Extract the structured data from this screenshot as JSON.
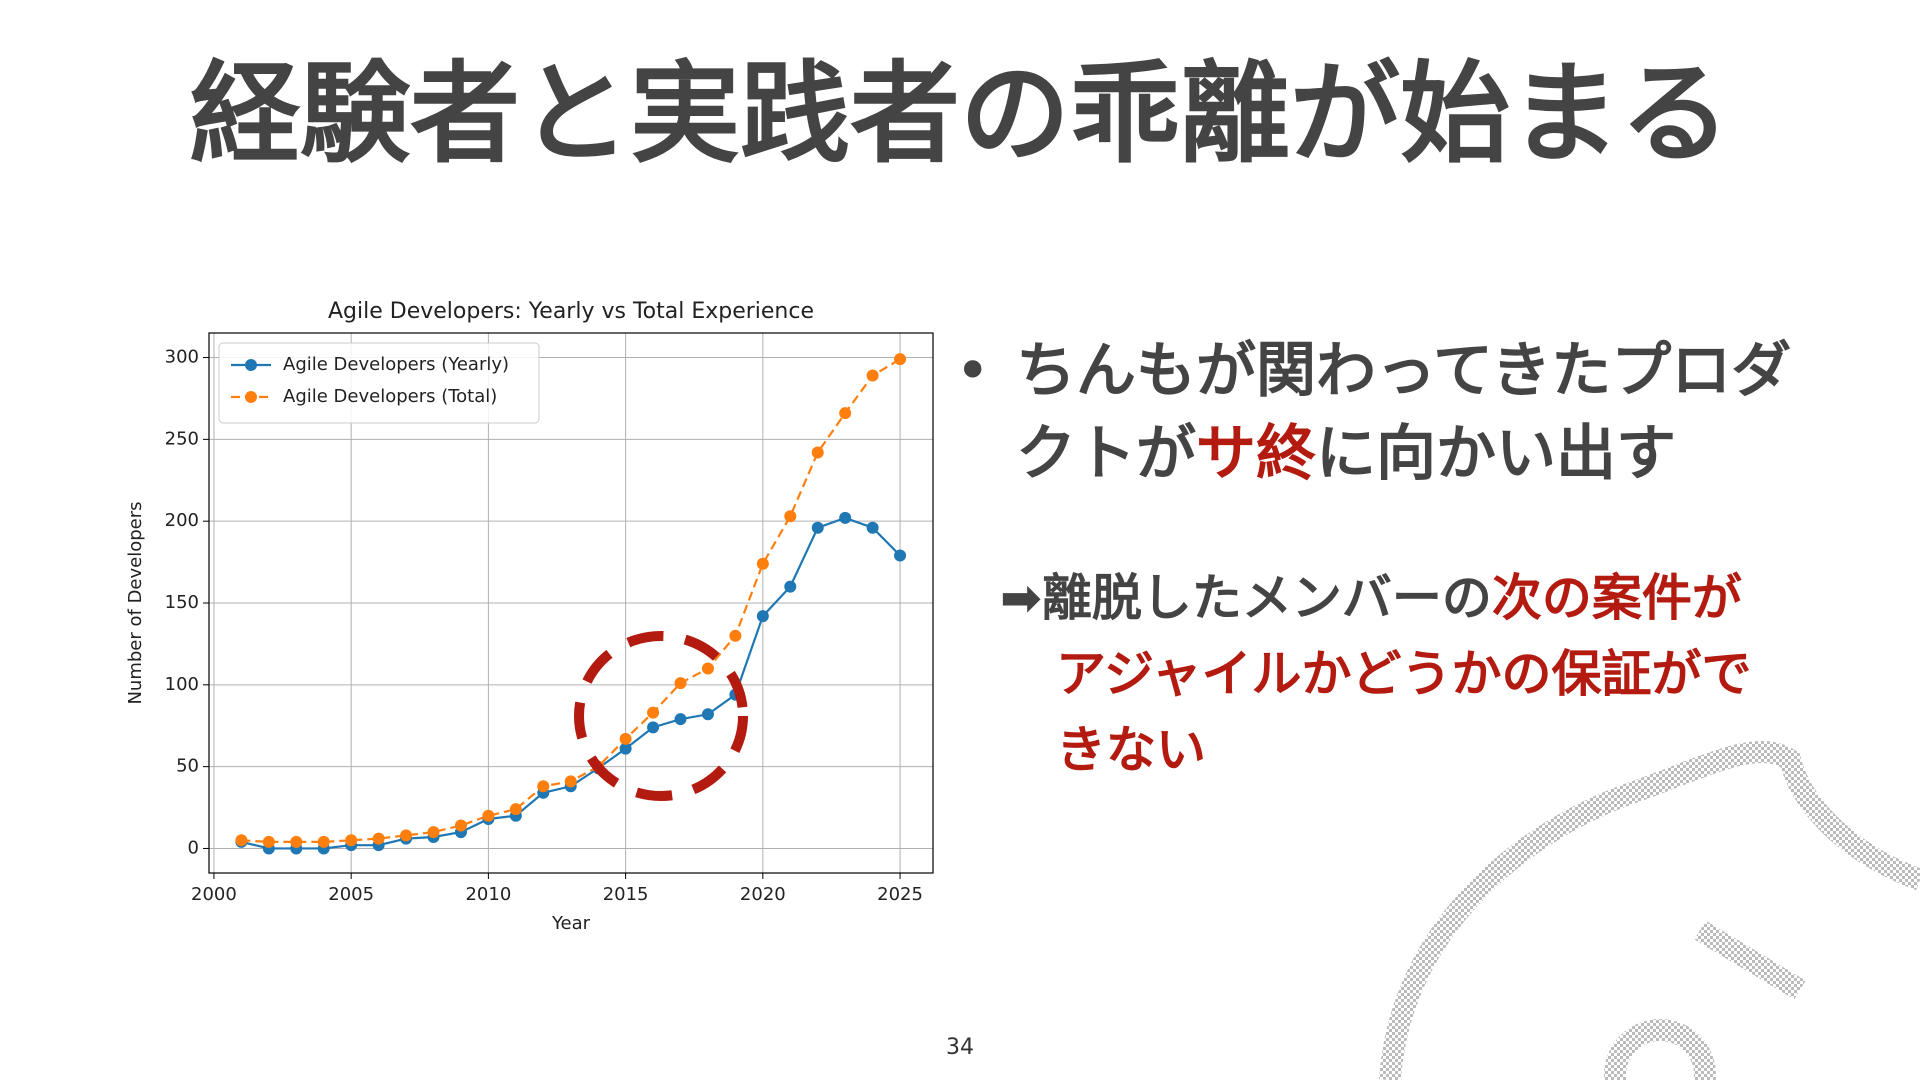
{
  "slide": {
    "title": "経験者と実践者の乖離が始まる",
    "bullet": [
      "ちんもが関わってきたプロダクトが",
      "サ終",
      "に向かい出す"
    ],
    "note": [
      "➡離脱したメンバーの",
      "次の案件がアジャイルかどうかの保証ができない"
    ],
    "page_number": "34"
  },
  "chart_data": {
    "type": "line",
    "title": "Agile Developers: Yearly vs Total Experience",
    "x_label": "Year",
    "y_label": "Number of Developers",
    "x": [
      2001,
      2002,
      2003,
      2004,
      2005,
      2006,
      2007,
      2008,
      2009,
      2010,
      2011,
      2012,
      2013,
      2014,
      2015,
      2016,
      2017,
      2018,
      2019,
      2020,
      2021,
      2022,
      2023,
      2024,
      2025
    ],
    "series": [
      {
        "name": "Agile Developers (Yearly)",
        "color": "#1f77b4",
        "dashed": false,
        "values": [
          4,
          0,
          0,
          0,
          2,
          2,
          6,
          7,
          10,
          18,
          20,
          34,
          38,
          49,
          61,
          74,
          79,
          82,
          94,
          142,
          160,
          196,
          202,
          196,
          179
        ]
      },
      {
        "name": "Agile Developers (Total)",
        "color": "#ff7f0e",
        "dashed": true,
        "values": [
          5,
          4,
          4,
          4,
          5,
          6,
          8,
          10,
          14,
          20,
          24,
          38,
          41,
          50,
          67,
          83,
          101,
          110,
          130,
          174,
          203,
          242,
          266,
          289,
          299
        ]
      }
    ],
    "xlim": [
      1999.82,
      2026.2
    ],
    "xticks": [
      2000,
      2005,
      2010,
      2015,
      2020,
      2025
    ],
    "ylim": [
      -15,
      315
    ],
    "yticks": [
      0,
      50,
      100,
      150,
      200,
      250,
      300
    ],
    "grid": true,
    "legend": "upper left"
  }
}
